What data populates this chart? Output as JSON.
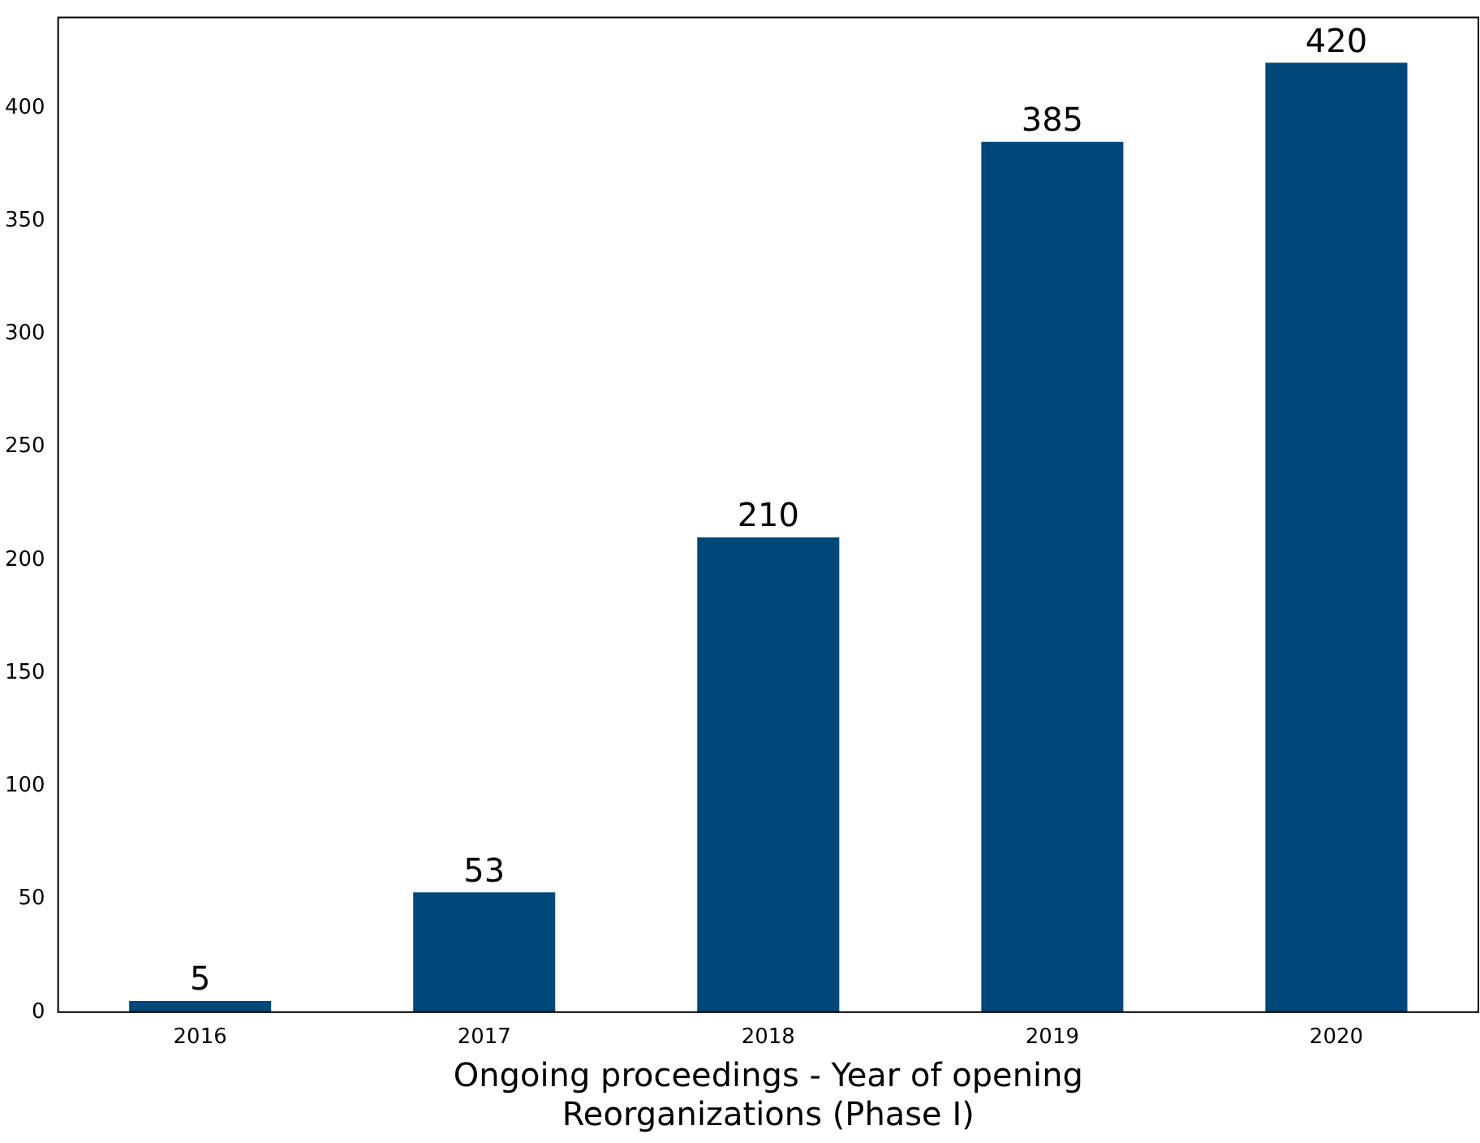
{
  "chart_data": {
    "type": "bar",
    "xlabel": "Ongoing proceedings - Year of opening\nReorganizations (Phase I)",
    "categories": [
      "2016",
      "2017",
      "2018",
      "2019",
      "2020"
    ],
    "values": [
      5,
      53,
      210,
      385,
      420
    ],
    "color": "#00487a",
    "ylim": [
      0,
      440
    ],
    "yticks": [
      0,
      50,
      100,
      150,
      200,
      250,
      300,
      350,
      400
    ],
    "data_labels": true,
    "grid": false,
    "legend": false
  }
}
